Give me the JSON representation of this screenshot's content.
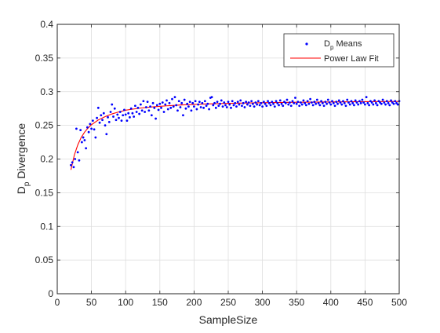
{
  "chart_data": {
    "type": "scatter",
    "xlabel": "SampleSize",
    "ylabel": {
      "main": "D",
      "sub": "p",
      "rest": " Divergence"
    },
    "xlim": [
      0,
      500
    ],
    "ylim": [
      0,
      0.4
    ],
    "xticks": [
      0,
      50,
      100,
      150,
      200,
      250,
      300,
      350,
      400,
      450,
      500
    ],
    "xtick_labels": [
      "0",
      "50",
      "100",
      "150",
      "200",
      "250",
      "300",
      "350",
      "400",
      "450",
      "500"
    ],
    "yticks": [
      0,
      0.05,
      0.1,
      0.15,
      0.2,
      0.25,
      0.3,
      0.35,
      0.4
    ],
    "ytick_labels": [
      "0",
      "0.05",
      "0.1",
      "0.15",
      "0.2",
      "0.25",
      "0.3",
      "0.35",
      "0.4"
    ],
    "grid": true,
    "legend_position": "top-right",
    "legend": [
      {
        "main": "D",
        "sub": "p",
        "rest": " Means",
        "marker": "dot",
        "color": "#0000ff"
      },
      {
        "main": "Power Law Fit",
        "sub": "",
        "rest": "",
        "marker": "line",
        "color": "#ff0000"
      }
    ],
    "series": [
      {
        "name": "Dp Means",
        "kind": "scatter",
        "color": "#0000ff",
        "points": [
          [
            20,
            0.191
          ],
          [
            22,
            0.195
          ],
          [
            24,
            0.188
          ],
          [
            26,
            0.2
          ],
          [
            28,
            0.245
          ],
          [
            30,
            0.21
          ],
          [
            32,
            0.198
          ],
          [
            34,
            0.243
          ],
          [
            36,
            0.225
          ],
          [
            38,
            0.232
          ],
          [
            40,
            0.228
          ],
          [
            42,
            0.216
          ],
          [
            44,
            0.247
          ],
          [
            46,
            0.24
          ],
          [
            48,
            0.252
          ],
          [
            50,
            0.245
          ],
          [
            52,
            0.257
          ],
          [
            54,
            0.244
          ],
          [
            56,
            0.232
          ],
          [
            58,
            0.261
          ],
          [
            60,
            0.276
          ],
          [
            62,
            0.254
          ],
          [
            64,
            0.265
          ],
          [
            66,
            0.258
          ],
          [
            68,
            0.268
          ],
          [
            70,
            0.25
          ],
          [
            72,
            0.237
          ],
          [
            74,
            0.262
          ],
          [
            76,
            0.255
          ],
          [
            78,
            0.27
          ],
          [
            80,
            0.281
          ],
          [
            82,
            0.263
          ],
          [
            84,
            0.275
          ],
          [
            86,
            0.258
          ],
          [
            88,
            0.266
          ],
          [
            90,
            0.261
          ],
          [
            92,
            0.27
          ],
          [
            94,
            0.257
          ],
          [
            96,
            0.265
          ],
          [
            98,
            0.273
          ],
          [
            100,
            0.266
          ],
          [
            102,
            0.257
          ],
          [
            104,
            0.268
          ],
          [
            106,
            0.262
          ],
          [
            108,
            0.275
          ],
          [
            110,
            0.268
          ],
          [
            112,
            0.263
          ],
          [
            114,
            0.279
          ],
          [
            116,
            0.27
          ],
          [
            118,
            0.276
          ],
          [
            120,
            0.267
          ],
          [
            122,
            0.281
          ],
          [
            124,
            0.272
          ],
          [
            126,
            0.286
          ],
          [
            128,
            0.27
          ],
          [
            130,
            0.277
          ],
          [
            132,
            0.285
          ],
          [
            134,
            0.272
          ],
          [
            136,
            0.278
          ],
          [
            138,
            0.265
          ],
          [
            140,
            0.283
          ],
          [
            142,
            0.276
          ],
          [
            144,
            0.26
          ],
          [
            146,
            0.28
          ],
          [
            148,
            0.273
          ],
          [
            150,
            0.282
          ],
          [
            152,
            0.276
          ],
          [
            154,
            0.284
          ],
          [
            156,
            0.27
          ],
          [
            158,
            0.281
          ],
          [
            160,
            0.287
          ],
          [
            162,
            0.274
          ],
          [
            164,
            0.283
          ],
          [
            166,
            0.276
          ],
          [
            168,
            0.289
          ],
          [
            170,
            0.278
          ],
          [
            172,
            0.292
          ],
          [
            174,
            0.28
          ],
          [
            176,
            0.272
          ],
          [
            178,
            0.286
          ],
          [
            180,
            0.277
          ],
          [
            182,
            0.283
          ],
          [
            184,
            0.265
          ],
          [
            186,
            0.288
          ],
          [
            188,
            0.275
          ],
          [
            190,
            0.282
          ],
          [
            192,
            0.278
          ],
          [
            194,
            0.285
          ],
          [
            196,
            0.272
          ],
          [
            198,
            0.283
          ],
          [
            200,
            0.278
          ],
          [
            202,
            0.286
          ],
          [
            204,
            0.274
          ],
          [
            206,
            0.281
          ],
          [
            208,
            0.285
          ],
          [
            210,
            0.277
          ],
          [
            212,
            0.283
          ],
          [
            214,
            0.276
          ],
          [
            216,
            0.286
          ],
          [
            218,
            0.279
          ],
          [
            220,
            0.282
          ],
          [
            222,
            0.274
          ],
          [
            224,
            0.291
          ],
          [
            226,
            0.292
          ],
          [
            228,
            0.28
          ],
          [
            230,
            0.283
          ],
          [
            232,
            0.276
          ],
          [
            234,
            0.285
          ],
          [
            236,
            0.279
          ],
          [
            238,
            0.282
          ],
          [
            240,
            0.287
          ],
          [
            242,
            0.278
          ],
          [
            244,
            0.284
          ],
          [
            246,
            0.28
          ],
          [
            248,
            0.277
          ],
          [
            250,
            0.285
          ],
          [
            252,
            0.281
          ],
          [
            254,
            0.276
          ],
          [
            256,
            0.286
          ],
          [
            258,
            0.28
          ],
          [
            260,
            0.283
          ],
          [
            262,
            0.278
          ],
          [
            264,
            0.285
          ],
          [
            266,
            0.281
          ],
          [
            268,
            0.287
          ],
          [
            270,
            0.279
          ],
          [
            272,
            0.283
          ],
          [
            274,
            0.277
          ],
          [
            276,
            0.285
          ],
          [
            278,
            0.281
          ],
          [
            280,
            0.284
          ],
          [
            282,
            0.279
          ],
          [
            284,
            0.286
          ],
          [
            286,
            0.282
          ],
          [
            288,
            0.278
          ],
          [
            290,
            0.284
          ],
          [
            292,
            0.281
          ],
          [
            294,
            0.286
          ],
          [
            296,
            0.28
          ],
          [
            298,
            0.283
          ],
          [
            300,
            0.278
          ],
          [
            302,
            0.285
          ],
          [
            304,
            0.282
          ],
          [
            306,
            0.279
          ],
          [
            308,
            0.286
          ],
          [
            310,
            0.283
          ],
          [
            312,
            0.28
          ],
          [
            314,
            0.285
          ],
          [
            316,
            0.282
          ],
          [
            318,
            0.278
          ],
          [
            320,
            0.286
          ],
          [
            322,
            0.283
          ],
          [
            324,
            0.28
          ],
          [
            326,
            0.287
          ],
          [
            328,
            0.282
          ],
          [
            330,
            0.279
          ],
          [
            332,
            0.285
          ],
          [
            334,
            0.283
          ],
          [
            336,
            0.288
          ],
          [
            338,
            0.281
          ],
          [
            340,
            0.284
          ],
          [
            342,
            0.279
          ],
          [
            344,
            0.286
          ],
          [
            346,
            0.283
          ],
          [
            348,
            0.291
          ],
          [
            350,
            0.282
          ],
          [
            352,
            0.285
          ],
          [
            354,
            0.279
          ],
          [
            356,
            0.284
          ],
          [
            358,
            0.281
          ],
          [
            360,
            0.287
          ],
          [
            362,
            0.283
          ],
          [
            364,
            0.28
          ],
          [
            366,
            0.286
          ],
          [
            368,
            0.282
          ],
          [
            370,
            0.289
          ],
          [
            372,
            0.284
          ],
          [
            374,
            0.28
          ],
          [
            376,
            0.285
          ],
          [
            378,
            0.282
          ],
          [
            380,
            0.288
          ],
          [
            382,
            0.283
          ],
          [
            384,
            0.28
          ],
          [
            386,
            0.286
          ],
          [
            388,
            0.283
          ],
          [
            390,
            0.279
          ],
          [
            392,
            0.285
          ],
          [
            394,
            0.282
          ],
          [
            396,
            0.288
          ],
          [
            398,
            0.284
          ],
          [
            400,
            0.281
          ],
          [
            402,
            0.286
          ],
          [
            404,
            0.283
          ],
          [
            406,
            0.279
          ],
          [
            408,
            0.285
          ],
          [
            410,
            0.282
          ],
          [
            412,
            0.287
          ],
          [
            414,
            0.284
          ],
          [
            416,
            0.281
          ],
          [
            418,
            0.286
          ],
          [
            420,
            0.283
          ],
          [
            422,
            0.279
          ],
          [
            424,
            0.288
          ],
          [
            426,
            0.284
          ],
          [
            428,
            0.281
          ],
          [
            430,
            0.286
          ],
          [
            432,
            0.283
          ],
          [
            434,
            0.28
          ],
          [
            436,
            0.287
          ],
          [
            438,
            0.284
          ],
          [
            440,
            0.281
          ],
          [
            442,
            0.286
          ],
          [
            444,
            0.283
          ],
          [
            446,
            0.288
          ],
          [
            448,
            0.284
          ],
          [
            450,
            0.281
          ],
          [
            452,
            0.292
          ],
          [
            454,
            0.283
          ],
          [
            456,
            0.28
          ],
          [
            458,
            0.286
          ],
          [
            460,
            0.284
          ],
          [
            462,
            0.281
          ],
          [
            464,
            0.287
          ],
          [
            466,
            0.283
          ],
          [
            468,
            0.28
          ],
          [
            470,
            0.286
          ],
          [
            472,
            0.284
          ],
          [
            474,
            0.282
          ],
          [
            476,
            0.288
          ],
          [
            478,
            0.284
          ],
          [
            480,
            0.281
          ],
          [
            482,
            0.286
          ],
          [
            484,
            0.283
          ],
          [
            486,
            0.28
          ],
          [
            488,
            0.287
          ],
          [
            490,
            0.284
          ],
          [
            492,
            0.282
          ],
          [
            494,
            0.286
          ],
          [
            496,
            0.283
          ],
          [
            498,
            0.281
          ],
          [
            500,
            0.286
          ]
        ]
      },
      {
        "name": "Power Law Fit",
        "kind": "line",
        "color": "#ff0000",
        "points": [
          [
            20,
            0.184
          ],
          [
            25,
            0.206
          ],
          [
            30,
            0.221
          ],
          [
            35,
            0.232
          ],
          [
            40,
            0.24
          ],
          [
            45,
            0.246
          ],
          [
            50,
            0.251
          ],
          [
            60,
            0.258
          ],
          [
            70,
            0.263
          ],
          [
            80,
            0.267
          ],
          [
            90,
            0.27
          ],
          [
            100,
            0.2725
          ],
          [
            120,
            0.2755
          ],
          [
            140,
            0.2775
          ],
          [
            160,
            0.279
          ],
          [
            180,
            0.2802
          ],
          [
            200,
            0.2811
          ],
          [
            225,
            0.282
          ],
          [
            250,
            0.2827
          ],
          [
            300,
            0.2836
          ],
          [
            350,
            0.2843
          ],
          [
            400,
            0.2848
          ],
          [
            450,
            0.2852
          ],
          [
            500,
            0.2855
          ]
        ]
      }
    ]
  }
}
